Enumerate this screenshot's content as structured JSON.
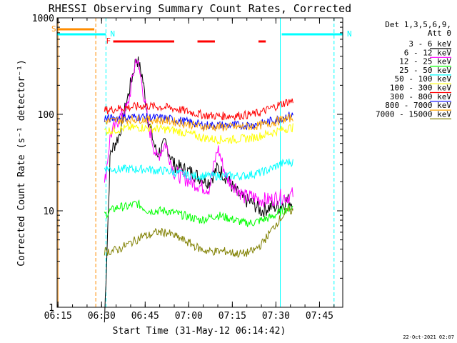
{
  "chart_data": {
    "type": "line",
    "title": "RHESSI Observing Summary Count Rates, Corrected",
    "xlabel": "Start Time (31-May-12 06:14:42)",
    "ylabel": "Corrected Count Rate (s⁻¹ detector⁻¹)",
    "y_scale": "log",
    "ylim": [
      1,
      1000
    ],
    "xlim": [
      "06:14:42",
      "07:53:00"
    ],
    "x_ticks": [
      "06:15",
      "06:30",
      "06:45",
      "07:00",
      "07:15",
      "07:30",
      "07:45"
    ],
    "y_ticks": [
      "1",
      "10",
      "100",
      "1000"
    ],
    "grid": false,
    "legend_placement": "right",
    "legend_header": [
      "Det 1,3,5,6,9,",
      "Att 0"
    ],
    "footer": "22-Oct-2021 02:07",
    "x": [
      "06:31",
      "06:33",
      "06:36",
      "06:39",
      "06:42",
      "06:44",
      "06:46",
      "06:49",
      "06:52",
      "06:55",
      "06:58",
      "07:01",
      "07:04",
      "07:07",
      "07:10",
      "07:13",
      "07:16",
      "07:19",
      "07:22",
      "07:25",
      "07:28",
      "07:31",
      "07:34",
      "07:36"
    ],
    "series": [
      {
        "name": "3 - 6 keV",
        "color": "#000000",
        "values": [
          0.7,
          40,
          60,
          150,
          390,
          250,
          90,
          38,
          50,
          30,
          27,
          25,
          22,
          20,
          28,
          22,
          16,
          13,
          12,
          10,
          11,
          11,
          13,
          12
        ]
      },
      {
        "name": "6 - 12 keV",
        "color": "#ff00ff",
        "values": [
          18,
          60,
          90,
          120,
          400,
          200,
          80,
          35,
          50,
          25,
          22,
          20,
          18,
          17,
          45,
          22,
          18,
          14,
          14,
          13,
          13,
          14,
          14,
          15
        ]
      },
      {
        "name": "12 - 25 keV",
        "color": "#00ff00",
        "values": [
          9,
          10,
          11,
          11,
          12,
          11,
          10,
          10,
          10,
          9.5,
          9,
          8.5,
          8,
          8.5,
          9,
          8.5,
          8,
          7.5,
          7.5,
          8,
          8.5,
          9.5,
          10.5,
          11
        ]
      },
      {
        "name": "25 - 50 keV",
        "color": "#00ffff",
        "values": [
          28,
          27,
          27,
          27,
          27,
          27,
          27,
          26,
          26,
          25,
          24,
          23,
          23,
          23,
          23,
          23,
          23,
          23,
          24,
          25,
          27,
          30,
          32,
          32
        ]
      },
      {
        "name": "50 - 100 keV",
        "color": "#ffff00",
        "values": [
          68,
          68,
          70,
          72,
          73,
          73,
          72,
          71,
          70,
          68,
          65,
          62,
          58,
          56,
          55,
          55,
          55,
          56,
          57,
          60,
          64,
          68,
          72,
          73
        ]
      },
      {
        "name": "100 - 300 keV",
        "color": "#ff0000",
        "values": [
          110,
          112,
          115,
          118,
          120,
          122,
          122,
          120,
          118,
          115,
          110,
          105,
          100,
          97,
          96,
          96,
          97,
          98,
          100,
          105,
          115,
          125,
          135,
          138
        ]
      },
      {
        "name": "300 - 800 keV",
        "color": "#0000ff",
        "values": [
          90,
          90,
          92,
          93,
          94,
          94,
          93,
          92,
          91,
          88,
          85,
          82,
          78,
          77,
          77,
          77,
          77,
          77,
          78,
          80,
          85,
          90,
          96,
          98
        ]
      },
      {
        "name": "800 - 7000 keV",
        "color": "#ffa500",
        "values": [
          85,
          85,
          87,
          88,
          89,
          89,
          88,
          87,
          86,
          84,
          81,
          78,
          75,
          74,
          74,
          74,
          74,
          74,
          75,
          77,
          81,
          86,
          90,
          92
        ]
      },
      {
        "name": "7000 - 15000 keV",
        "color": "#808000",
        "values": [
          3.8,
          3.8,
          4.0,
          4.5,
          5.0,
          5.5,
          5.5,
          6.0,
          6.0,
          5.5,
          5.0,
          4.5,
          4.0,
          3.8,
          3.8,
          3.8,
          3.6,
          3.6,
          3.8,
          4.5,
          6.0,
          8.0,
          10,
          10
        ]
      }
    ],
    "flag_bars": [
      {
        "label": "S",
        "color": "#ff8c00",
        "start": "06:14:42",
        "end": "06:27:30"
      },
      {
        "label": "N",
        "color": "#00ffff",
        "start": "06:14:42",
        "end": "06:31:30"
      },
      {
        "label": "N",
        "color": "#00ffff",
        "start": "07:32:00",
        "end": "07:53:00"
      },
      {
        "label": "F",
        "color": "#ff0000",
        "start": "06:34:00",
        "end": "06:55:00"
      },
      {
        "label": "",
        "color": "#ff0000",
        "start": "07:03:00",
        "end": "07:09:00"
      },
      {
        "label": "",
        "color": "#ff0000",
        "start": "07:24:00",
        "end": "07:26:30"
      }
    ],
    "markers": [
      {
        "time": "06:15:00",
        "color": "#ff8c00",
        "style": "solid"
      },
      {
        "time": "06:28:00",
        "color": "#ff8c00",
        "style": "dashed"
      },
      {
        "time": "06:31:30",
        "color": "#00ffff",
        "style": "dashed"
      },
      {
        "time": "07:31:30",
        "color": "#00ffff",
        "style": "solid"
      },
      {
        "time": "07:50:00",
        "color": "#00ffff",
        "style": "dashed"
      }
    ]
  }
}
